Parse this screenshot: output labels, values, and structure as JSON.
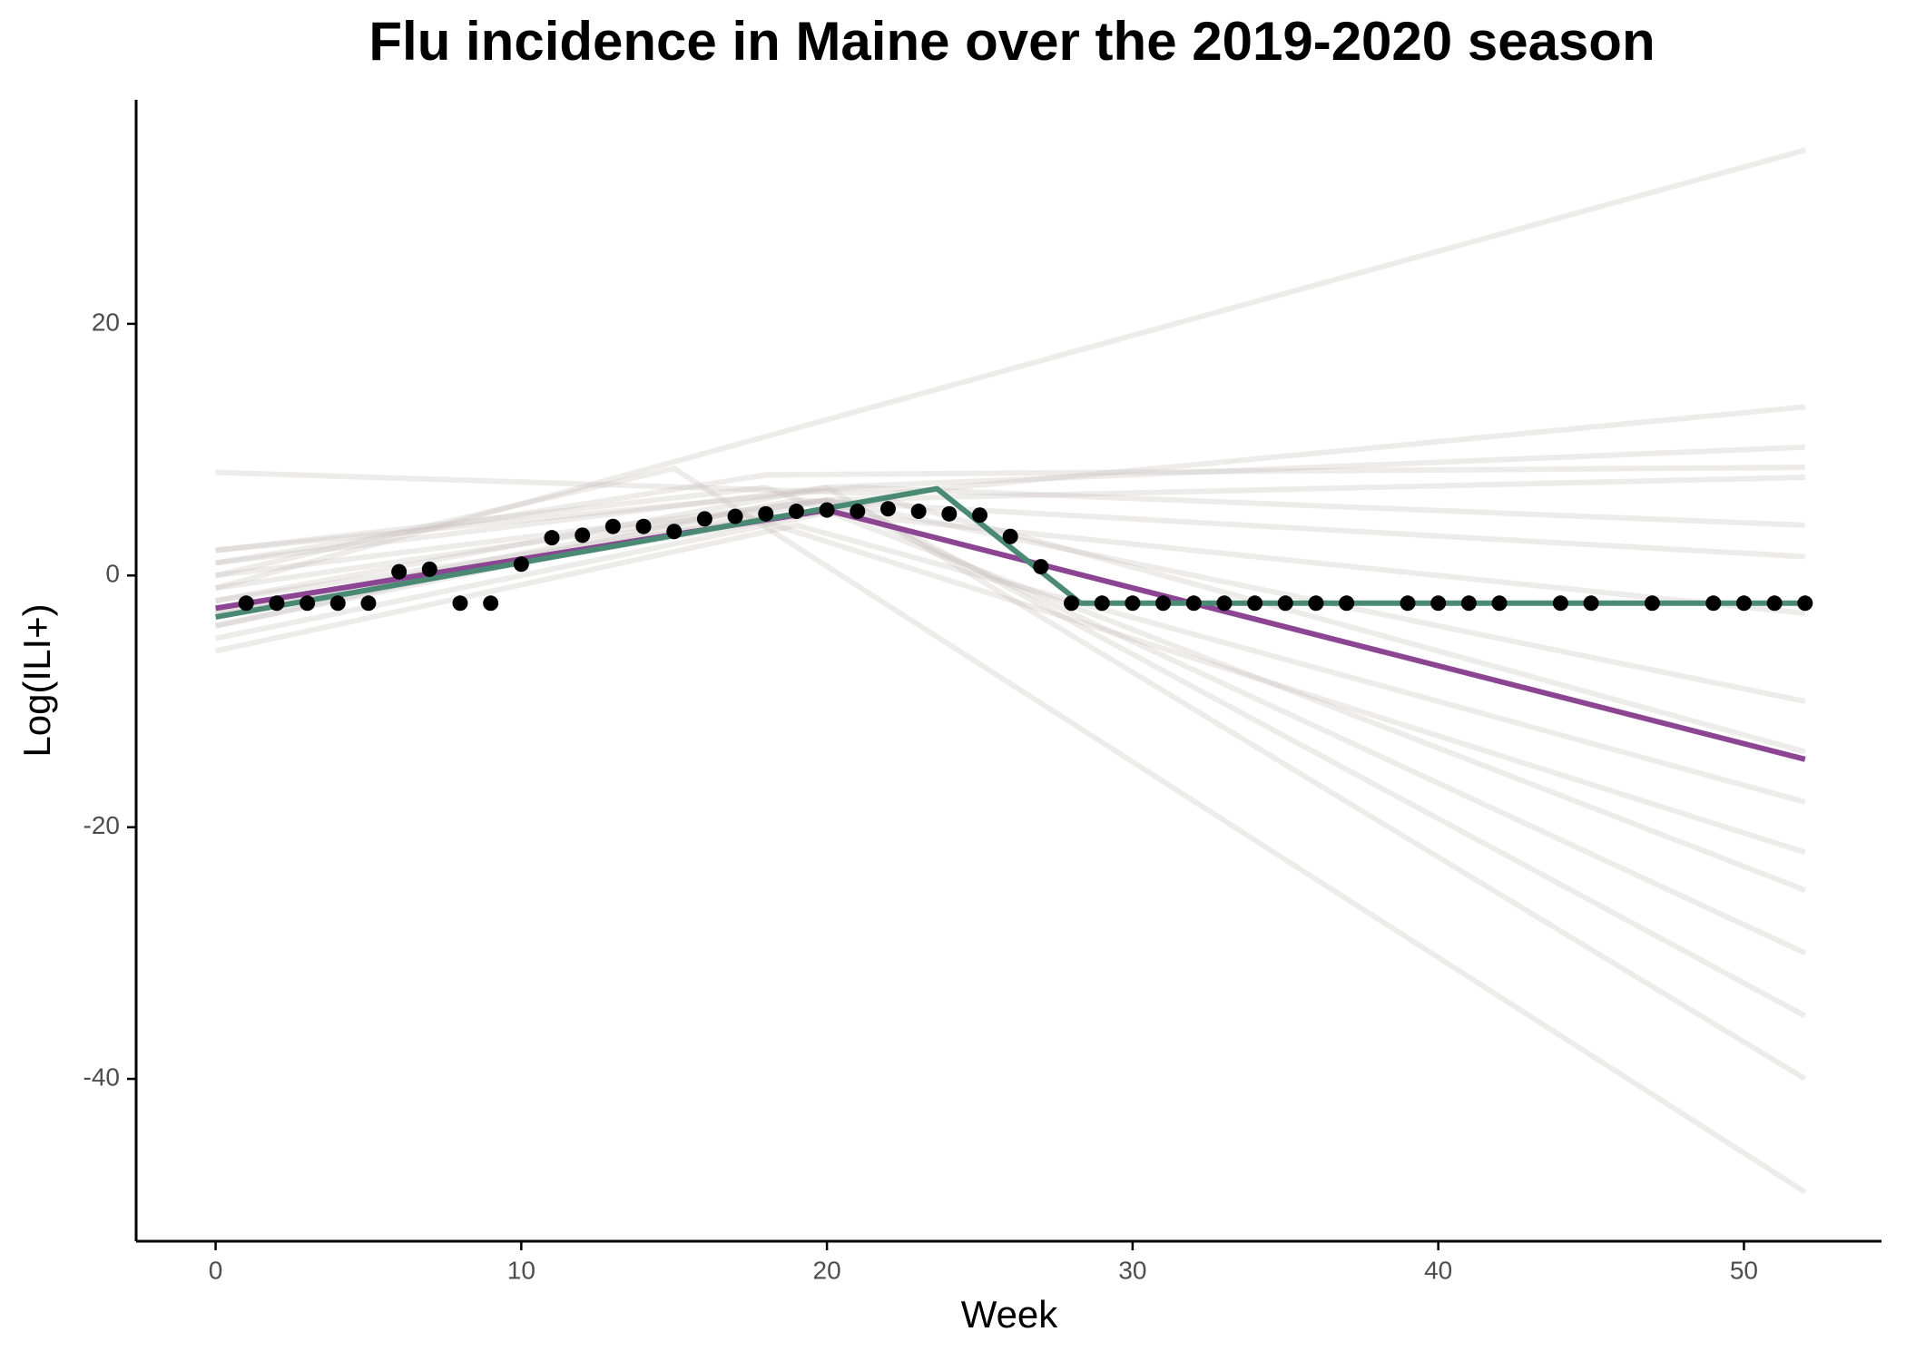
{
  "chart_data": {
    "type": "line",
    "title": "Flu incidence in Maine over the 2019-2020 season",
    "x_label": "Week",
    "y_label": "Log(ILI+)",
    "xlim": [
      -2.6,
      54.5
    ],
    "ylim": [
      -52.9,
      37.8
    ],
    "xticks": [
      0,
      10,
      20,
      30,
      40,
      50
    ],
    "yticks": [
      -40,
      -20,
      0,
      20
    ],
    "grid": false,
    "series": [
      {
        "color": "rgba(200,188,188,0.3)",
        "x": [
          0,
          52
        ],
        "values": [
          -1,
          33.8
        ]
      },
      {
        "color": "rgba(200,188,188,0.3)",
        "x": [
          0,
          22,
          52
        ],
        "values": [
          8.2,
          6.5,
          13.4
        ]
      },
      {
        "color": "rgba(200,188,188,0.3)",
        "x": [
          0,
          20,
          52
        ],
        "values": [
          -2,
          7,
          10.2
        ]
      },
      {
        "color": "rgba(200,188,188,0.3)",
        "x": [
          0,
          18,
          52
        ],
        "values": [
          1,
          8,
          8.6
        ]
      },
      {
        "color": "rgba(200,188,188,0.3)",
        "x": [
          0,
          20,
          52
        ],
        "values": [
          -4,
          6,
          7.8
        ]
      },
      {
        "color": "rgba(200,188,188,0.3)",
        "x": [
          0,
          21,
          52
        ],
        "values": [
          2,
          7,
          4
        ]
      },
      {
        "color": "rgba(200,188,188,0.3)",
        "x": [
          0,
          19,
          52
        ],
        "values": [
          -3,
          6,
          1.5
        ]
      },
      {
        "color": "rgba(200,188,188,0.3)",
        "x": [
          0,
          20,
          52
        ],
        "values": [
          -5,
          5,
          -3
        ]
      },
      {
        "color": "rgba(200,188,188,0.3)",
        "x": [
          0,
          20,
          52
        ],
        "values": [
          0,
          6,
          -10
        ]
      },
      {
        "color": "rgba(200,188,188,0.3)",
        "x": [
          0,
          19,
          52
        ],
        "values": [
          -6,
          4,
          -18
        ]
      },
      {
        "color": "rgba(200,188,188,0.3)",
        "x": [
          0,
          18,
          52
        ],
        "values": [
          2,
          7,
          -25
        ]
      },
      {
        "color": "rgba(200,188,188,0.3)",
        "x": [
          0,
          20,
          52
        ],
        "values": [
          -1,
          6,
          -30
        ]
      },
      {
        "color": "rgba(200,188,188,0.3)",
        "x": [
          0,
          21,
          52
        ],
        "values": [
          -3,
          5.5,
          -35
        ]
      },
      {
        "color": "rgba(200,188,188,0.3)",
        "x": [
          0,
          20,
          52
        ],
        "values": [
          1,
          7,
          -40
        ]
      },
      {
        "color": "rgba(200,188,188,0.3)",
        "x": [
          0,
          15,
          52
        ],
        "values": [
          0,
          8.5,
          -49
        ]
      },
      {
        "color": "rgba(200,188,188,0.3)",
        "x": [
          0,
          17,
          52
        ],
        "values": [
          -4,
          5,
          -22
        ]
      },
      {
        "color": "rgba(200,188,188,0.3)",
        "x": [
          0,
          22,
          52
        ],
        "values": [
          -2,
          6,
          -14
        ]
      },
      {
        "color": "#8b4593",
        "x": [
          0,
          20,
          52
        ],
        "values": [
          -2.6,
          5.2,
          -14.6
        ]
      },
      {
        "color": "#4a8a75",
        "x": [
          0,
          23.6,
          28.3,
          52
        ],
        "values": [
          -3.3,
          6.9,
          -2.2,
          -2.2
        ]
      }
    ],
    "points": {
      "color": "#000000",
      "x": [
        1,
        2,
        3,
        4,
        5,
        6,
        7,
        8,
        9,
        10,
        11,
        12,
        13,
        14,
        15,
        16,
        17,
        18,
        19,
        20,
        21,
        22,
        23,
        24,
        25,
        26,
        27,
        28,
        29,
        30,
        31,
        32,
        33,
        34,
        35,
        36,
        37,
        39,
        40,
        41,
        42,
        44,
        45,
        47,
        49,
        50,
        51,
        52
      ],
      "values": [
        -2.2,
        -2.2,
        -2.2,
        -2.2,
        -2.2,
        0.3,
        0.5,
        -2.2,
        -2.2,
        0.9,
        3.0,
        3.2,
        3.9,
        3.9,
        3.5,
        4.5,
        4.7,
        4.9,
        5.1,
        5.2,
        5.1,
        5.3,
        5.1,
        4.9,
        4.8,
        3.1,
        0.7,
        -2.2,
        -2.2,
        -2.2,
        -2.2,
        -2.2,
        -2.2,
        -2.2,
        -2.2,
        -2.2,
        -2.2,
        -2.2,
        -2.2,
        -2.2,
        -2.2,
        -2.2,
        -2.2,
        -2.2,
        -2.2,
        -2.2,
        -2.2,
        -2.2
      ]
    }
  }
}
